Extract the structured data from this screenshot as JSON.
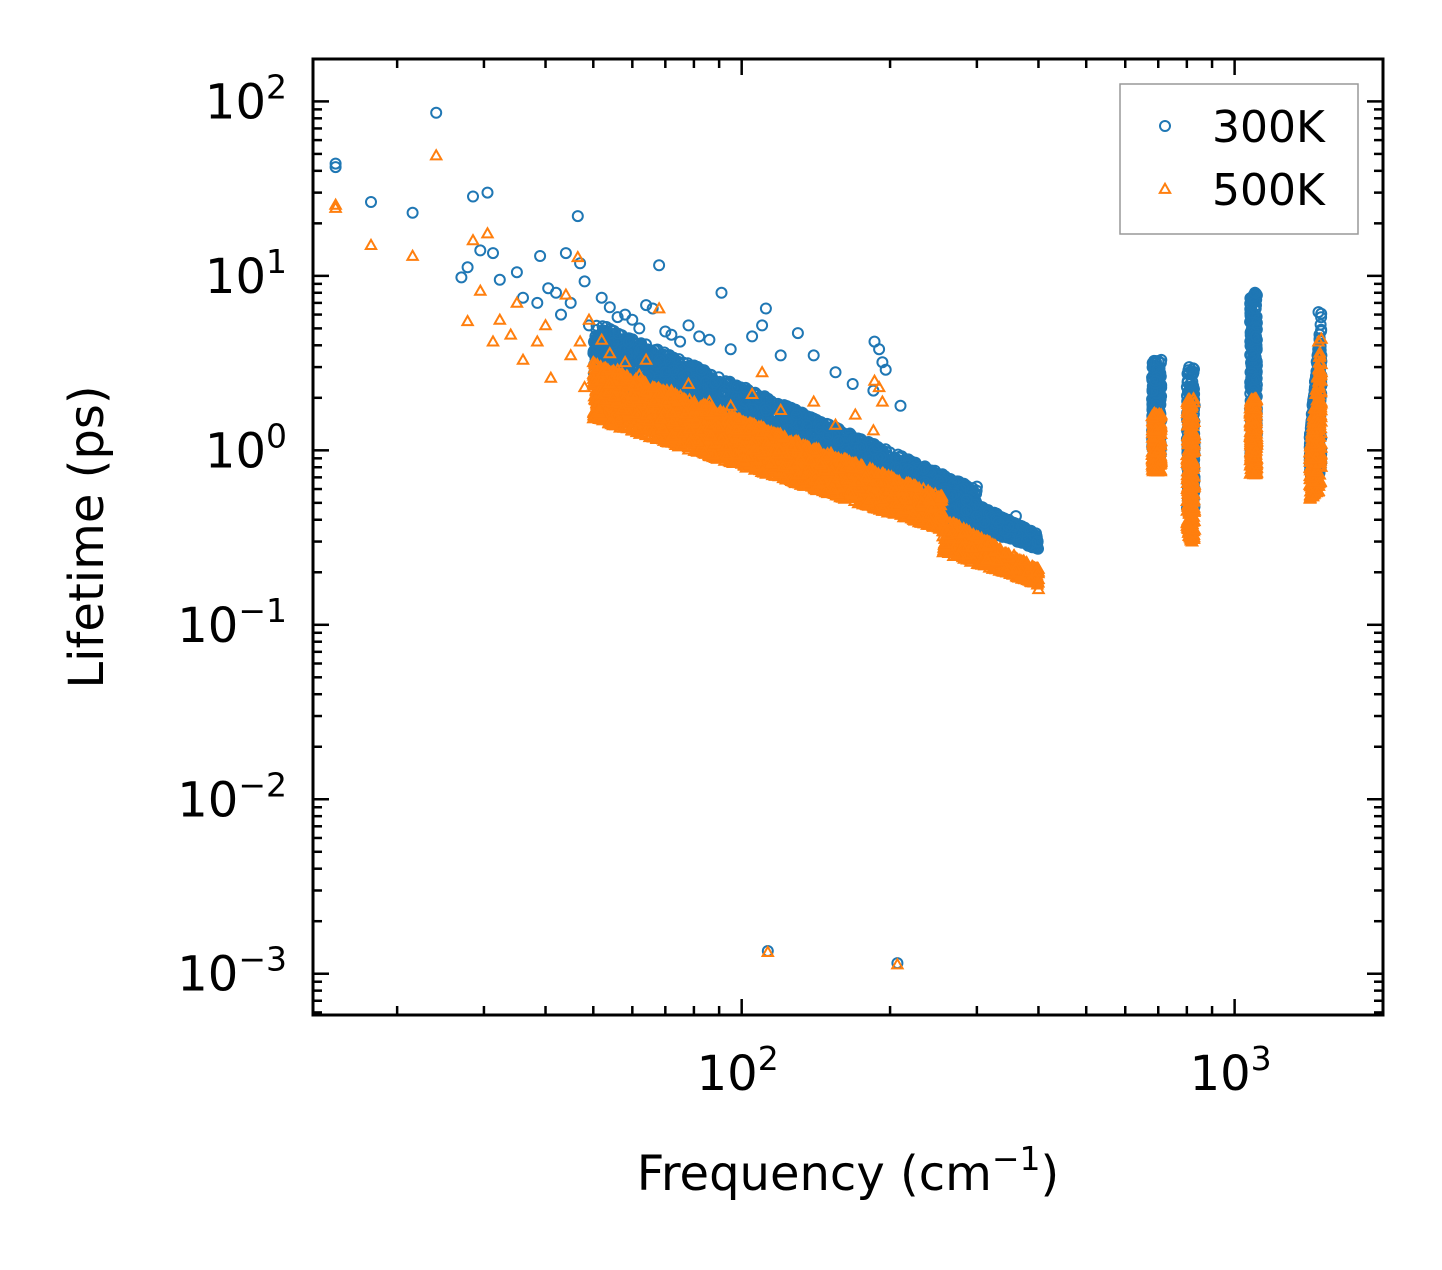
{
  "chart_data": {
    "type": "scatter",
    "title": "",
    "xlabel": "Frequency (cm",
    "xlabel_sup": "−1",
    "xlabel_suffix": ")",
    "ylabel": "Lifetime (ps)",
    "xscale": "log",
    "yscale": "log",
    "xlim": [
      13.5,
      2000
    ],
    "ylim": [
      0.00058,
      175
    ],
    "x_ticks": [
      {
        "value": 100,
        "base": "10",
        "exp": "2"
      },
      {
        "value": 1000,
        "base": "10",
        "exp": "3"
      }
    ],
    "y_ticks": [
      {
        "value": 100,
        "base": "10",
        "exp": "2"
      },
      {
        "value": 10,
        "base": "10",
        "exp": "1"
      },
      {
        "value": 1,
        "base": "10",
        "exp": "0"
      },
      {
        "value": 0.1,
        "base": "10",
        "exp": "−1"
      },
      {
        "value": 0.01,
        "base": "10",
        "exp": "−2"
      },
      {
        "value": 0.001,
        "base": "10",
        "exp": "−3"
      }
    ],
    "grid": false,
    "legend_position": "top-right",
    "series": [
      {
        "name": "300K",
        "marker": "circle",
        "color": "#1f77b4",
        "points": [
          [
            15,
            44
          ],
          [
            15,
            42
          ],
          [
            17.7,
            26.5
          ],
          [
            21.5,
            23
          ],
          [
            24,
            86
          ],
          [
            27,
            9.8
          ],
          [
            27.8,
            11.2
          ],
          [
            28.5,
            28.5
          ],
          [
            29.5,
            14
          ],
          [
            30.5,
            30
          ],
          [
            31.3,
            13.5
          ],
          [
            32.3,
            9.5
          ],
          [
            35,
            10.5
          ],
          [
            36,
            7.5
          ],
          [
            38.5,
            7
          ],
          [
            39,
            13
          ],
          [
            40.5,
            8.5
          ],
          [
            42,
            8
          ],
          [
            43,
            6
          ],
          [
            44,
            13.5
          ],
          [
            45,
            7
          ],
          [
            46.5,
            22
          ],
          [
            47,
            11.8
          ],
          [
            48,
            9.3
          ],
          [
            49,
            5.2
          ],
          [
            50.5,
            4.5
          ],
          [
            52,
            7.5
          ],
          [
            54,
            6.6
          ],
          [
            56,
            5.8
          ],
          [
            58,
            6
          ],
          [
            60,
            5.6
          ],
          [
            62,
            5
          ],
          [
            64,
            6.8
          ],
          [
            66,
            6.5
          ],
          [
            68,
            11.5
          ],
          [
            70,
            4.8
          ],
          [
            72,
            4.6
          ],
          [
            75,
            4.2
          ],
          [
            78,
            5.2
          ],
          [
            82,
            4.5
          ],
          [
            86,
            4.3
          ],
          [
            91,
            8
          ],
          [
            95,
            3.8
          ],
          [
            105,
            4.5
          ],
          [
            110,
            5.2
          ],
          [
            112,
            6.5
          ],
          [
            120,
            3.5
          ],
          [
            130,
            4.7
          ],
          [
            140,
            3.5
          ],
          [
            155,
            2.8
          ],
          [
            168,
            2.4
          ],
          [
            185,
            2.2
          ],
          [
            186,
            4.2
          ],
          [
            190,
            3.8
          ],
          [
            193,
            3.2
          ],
          [
            196,
            2.9
          ],
          [
            210,
            1.8
          ],
          [
            300,
            0.62
          ],
          [
            360,
            0.42
          ],
          [
            398,
            0.3
          ],
          [
            113,
            0.00135
          ],
          [
            207,
            0.00115
          ],
          [
            690,
            2.5
          ],
          [
            700,
            1.6
          ],
          [
            710,
            3.3
          ],
          [
            820,
            2.8
          ],
          [
            810,
            1.3
          ],
          [
            830,
            1.8
          ],
          [
            1090,
            3.5
          ],
          [
            1100,
            8
          ],
          [
            1105,
            4.5
          ],
          [
            1480,
            6.2
          ],
          [
            1500,
            3.5
          ],
          [
            1445,
            1.0
          ],
          [
            1460,
            1.5
          ]
        ],
        "bands": [
          {
            "x": [
              50,
              300
            ],
            "y_top": [
              5.5,
              0.6
            ],
            "y_bottom": [
              2.5,
              0.42
            ],
            "density": 2600
          },
          {
            "x": [
              255,
              400
            ],
            "y_top": [
              0.62,
              0.33
            ],
            "y_bottom": [
              0.42,
              0.27
            ],
            "density": 600
          },
          {
            "x": [
              680,
              710
            ],
            "y_top": [
              3.3,
              3.3
            ],
            "y_bottom": [
              0.9,
              0.9
            ],
            "density": 220
          },
          {
            "x": [
              800,
              830
            ],
            "y_top": [
              3.0,
              3.0
            ],
            "y_bottom": [
              0.45,
              0.45
            ],
            "density": 220
          },
          {
            "x": [
              1075,
              1110
            ],
            "y_top": [
              8.0,
              8.0
            ],
            "y_bottom": [
              0.9,
              0.9
            ],
            "density": 280
          },
          {
            "x": [
              1420,
              1500
            ],
            "y_top": [
              1.2,
              6.3
            ],
            "y_bottom": [
              0.7,
              0.75
            ],
            "density": 320
          }
        ]
      },
      {
        "name": "500K",
        "marker": "triangle",
        "color": "#ff7f0e",
        "points": [
          [
            15,
            25.5
          ],
          [
            15,
            24.5
          ],
          [
            17.7,
            15
          ],
          [
            21.5,
            13
          ],
          [
            24,
            49
          ],
          [
            27.8,
            5.5
          ],
          [
            28.5,
            16
          ],
          [
            29.5,
            8.2
          ],
          [
            30.5,
            17.5
          ],
          [
            31.3,
            4.2
          ],
          [
            32.3,
            5.6
          ],
          [
            34,
            4.6
          ],
          [
            35,
            7
          ],
          [
            36,
            3.3
          ],
          [
            38.5,
            4.2
          ],
          [
            40,
            5.2
          ],
          [
            41,
            2.6
          ],
          [
            44,
            7.8
          ],
          [
            45,
            3.5
          ],
          [
            46.5,
            12.8
          ],
          [
            47,
            4.2
          ],
          [
            48,
            2.3
          ],
          [
            49,
            5.6
          ],
          [
            50,
            3.2
          ],
          [
            52,
            4.3
          ],
          [
            54,
            3.6
          ],
          [
            56,
            2.9
          ],
          [
            58,
            3.2
          ],
          [
            60,
            2.1
          ],
          [
            62,
            2.7
          ],
          [
            64,
            3.3
          ],
          [
            66,
            2.3
          ],
          [
            68,
            6.5
          ],
          [
            70,
            1.9
          ],
          [
            72,
            2.2
          ],
          [
            78,
            2.4
          ],
          [
            86,
            1.9
          ],
          [
            95,
            1.8
          ],
          [
            105,
            2.1
          ],
          [
            110,
            2.8
          ],
          [
            120,
            1.7
          ],
          [
            140,
            1.9
          ],
          [
            155,
            1.4
          ],
          [
            170,
            1.6
          ],
          [
            185,
            1.3
          ],
          [
            186,
            2.5
          ],
          [
            190,
            2.3
          ],
          [
            193,
            1.9
          ],
          [
            300,
            0.32
          ],
          [
            360,
            0.21
          ],
          [
            398,
            0.17
          ],
          [
            400,
            0.16
          ],
          [
            113,
            0.00133
          ],
          [
            207,
            0.00113
          ],
          [
            690,
            1.3
          ],
          [
            700,
            0.8
          ],
          [
            710,
            1.6
          ],
          [
            810,
            1.9
          ],
          [
            820,
            0.3
          ],
          [
            830,
            0.35
          ],
          [
            1090,
            1.5
          ],
          [
            1100,
            1.95
          ],
          [
            1105,
            0.75
          ],
          [
            1480,
            4.2
          ],
          [
            1500,
            2.8
          ],
          [
            1440,
            0.55
          ],
          [
            1460,
            0.9
          ]
        ],
        "bands": [
          {
            "x": [
              50,
              255
            ],
            "y_top": [
              3.2,
              0.55
            ],
            "y_bottom": [
              1.5,
              0.35
            ],
            "density": 3200
          },
          {
            "x": [
              255,
              400
            ],
            "y_top": [
              0.42,
              0.21
            ],
            "y_bottom": [
              0.26,
              0.17
            ],
            "density": 650
          },
          {
            "x": [
              680,
              710
            ],
            "y_top": [
              1.65,
              1.65
            ],
            "y_bottom": [
              0.75,
              0.75
            ],
            "density": 220
          },
          {
            "x": [
              800,
              830
            ],
            "y_top": [
              2.0,
              2.0
            ],
            "y_bottom": [
              0.3,
              0.3
            ],
            "density": 260
          },
          {
            "x": [
              1075,
              1110
            ],
            "y_top": [
              2.0,
              2.0
            ],
            "y_bottom": [
              0.72,
              0.72
            ],
            "density": 280
          },
          {
            "x": [
              1420,
              1500
            ],
            "y_top": [
              1.0,
              4.5
            ],
            "y_bottom": [
              0.52,
              0.6
            ],
            "density": 320
          }
        ]
      }
    ]
  }
}
